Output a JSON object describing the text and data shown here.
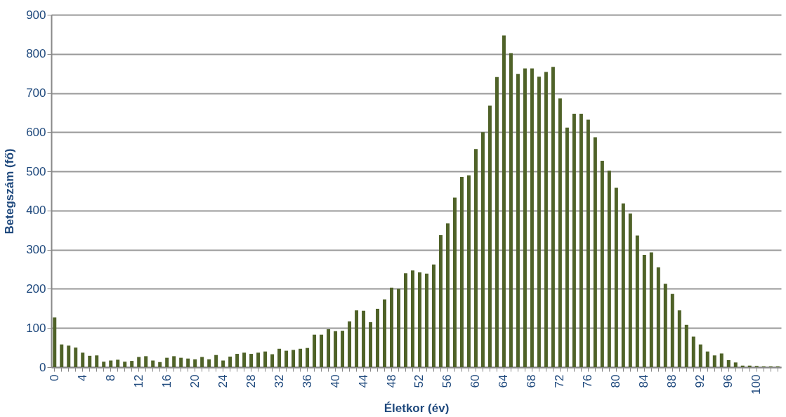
{
  "chart_data": {
    "type": "bar",
    "xlabel": "Életkor (év)",
    "ylabel": "Betegszám (fő)",
    "categories": [
      "0",
      null,
      null,
      null,
      "4",
      null,
      null,
      null,
      "8",
      null,
      null,
      null,
      "12",
      null,
      null,
      null,
      "16",
      null,
      null,
      null,
      "20",
      null,
      null,
      null,
      "24",
      null,
      null,
      null,
      "28",
      null,
      null,
      null,
      "32",
      null,
      null,
      null,
      "36",
      null,
      null,
      null,
      "40",
      null,
      null,
      null,
      "44",
      null,
      null,
      null,
      "48",
      null,
      null,
      null,
      "52",
      null,
      null,
      null,
      "56",
      null,
      null,
      null,
      "60",
      null,
      null,
      null,
      "64",
      null,
      null,
      null,
      "68",
      null,
      null,
      null,
      "72",
      null,
      null,
      null,
      "76",
      null,
      null,
      null,
      "80",
      null,
      null,
      null,
      "84",
      null,
      null,
      null,
      "88",
      null,
      null,
      null,
      "92",
      null,
      null,
      null,
      "96",
      null,
      null,
      null,
      "100",
      null,
      null,
      null
    ],
    "values": [
      127,
      58,
      55,
      50,
      37,
      29,
      30,
      14,
      17,
      19,
      14,
      16,
      26,
      28,
      17,
      13,
      24,
      28,
      24,
      22,
      20,
      26,
      20,
      31,
      17,
      27,
      34,
      37,
      34,
      37,
      40,
      33,
      47,
      42,
      44,
      47,
      49,
      83,
      83,
      97,
      92,
      93,
      117,
      145,
      144,
      115,
      149,
      173,
      203,
      200,
      240,
      247,
      242,
      239,
      262,
      337,
      367,
      433,
      486,
      490,
      557,
      600,
      668,
      741,
      847,
      802,
      749,
      763,
      763,
      742,
      754,
      767,
      686,
      612,
      647,
      647,
      632,
      587,
      527,
      502,
      458,
      418,
      392,
      336,
      287,
      293,
      255,
      213,
      187,
      145,
      108,
      78,
      58,
      40,
      30,
      35,
      18,
      12,
      4,
      4,
      3,
      2,
      2,
      2
    ],
    "color": "#4f6228",
    "ylim": [
      0,
      900
    ],
    "yticks": [
      0,
      100,
      200,
      300,
      400,
      500,
      600,
      700,
      800,
      900
    ],
    "grid": "y"
  }
}
